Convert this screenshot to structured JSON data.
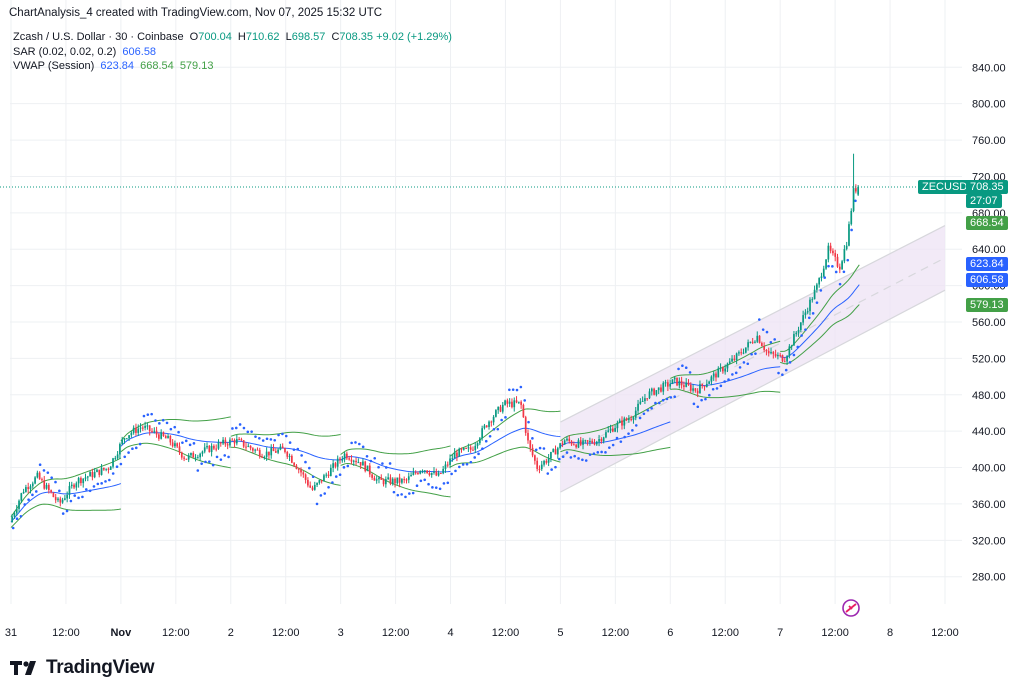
{
  "header": {
    "caption": "ChartAnalysis_4 created with TradingView.com, Nov 07, 2025 15:32 UTC"
  },
  "legend": {
    "symbol_line": "Zcash / U.S. Dollar · 30 · Coinbase",
    "open_key": "O",
    "open": "700.04",
    "high_key": "H",
    "high": "710.62",
    "low_key": "L",
    "low": "698.57",
    "close_key": "C",
    "close": "708.35",
    "change": "+9.02 (+1.29%)",
    "sar_label": "SAR (0.02, 0.02, 0.2)",
    "sar_value": "606.58",
    "vwap_label": "VWAP (Session)",
    "vwap_values": [
      "623.84",
      "668.54",
      "579.13"
    ]
  },
  "price_tags": {
    "symbol": "ZECUSD",
    "last_price": "708.35",
    "countdown": "27:07",
    "vwap_upper": "668.54",
    "vwap_mid": "623.84",
    "sar": "606.58",
    "vwap_lower": "579.13"
  },
  "footer": {
    "brand": "TradingView"
  },
  "colors": {
    "up": "#089981",
    "down": "#f23645",
    "sar": "#2962ff",
    "vwap": "#2962ff",
    "vwap_band": "#43a047",
    "channel_fill": "#ede3f4",
    "grid": "#eef0f3"
  },
  "chart_data": {
    "type": "candlestick",
    "title": "Zcash / U.S. Dollar · 30 · Coinbase",
    "interval": "30",
    "exchange": "Coinbase",
    "ylim": [
      250,
      870
    ],
    "yticks": [
      280,
      320,
      360,
      400,
      440,
      480,
      520,
      560,
      600,
      640,
      680,
      720,
      760,
      800,
      840
    ],
    "ytick_labels": [
      "280.00",
      "320.00",
      "360.00",
      "400.00",
      "440.00",
      "480.00",
      "520.00",
      "560.00",
      "600.00",
      "640.00",
      "680.00",
      "720.00",
      "760.00",
      "800.00",
      "840.00"
    ],
    "xticks": [
      {
        "label": "31",
        "t": 0
      },
      {
        "label": "12:00",
        "t": 0.5
      },
      {
        "label": "Nov",
        "t": 1
      },
      {
        "label": "12:00",
        "t": 1.5
      },
      {
        "label": "2",
        "t": 2
      },
      {
        "label": "12:00",
        "t": 2.5
      },
      {
        "label": "3",
        "t": 3
      },
      {
        "label": "12:00",
        "t": 3.5
      },
      {
        "label": "4",
        "t": 4
      },
      {
        "label": "12:00",
        "t": 4.5
      },
      {
        "label": "5",
        "t": 5
      },
      {
        "label": "12:00",
        "t": 5.5
      },
      {
        "label": "6",
        "t": 6
      },
      {
        "label": "12:00",
        "t": 6.5
      },
      {
        "label": "7",
        "t": 7
      },
      {
        "label": "12:00",
        "t": 7.5
      },
      {
        "label": "8",
        "t": 8
      },
      {
        "label": "12:00",
        "t": 8.5
      }
    ],
    "price_anchors": [
      [
        0.0,
        340
      ],
      [
        0.12,
        375
      ],
      [
        0.25,
        390
      ],
      [
        0.45,
        360
      ],
      [
        0.6,
        385
      ],
      [
        0.9,
        400
      ],
      [
        1.05,
        435
      ],
      [
        1.2,
        445
      ],
      [
        1.45,
        430
      ],
      [
        1.6,
        410
      ],
      [
        1.9,
        425
      ],
      [
        2.05,
        430
      ],
      [
        2.3,
        415
      ],
      [
        2.5,
        420
      ],
      [
        2.65,
        395
      ],
      [
        2.75,
        375
      ],
      [
        2.9,
        395
      ],
      [
        3.05,
        415
      ],
      [
        3.2,
        405
      ],
      [
        3.35,
        385
      ],
      [
        3.6,
        385
      ],
      [
        3.75,
        400
      ],
      [
        3.9,
        390
      ],
      [
        4.05,
        415
      ],
      [
        4.2,
        420
      ],
      [
        4.35,
        450
      ],
      [
        4.5,
        470
      ],
      [
        4.65,
        470
      ],
      [
        4.72,
        425
      ],
      [
        4.8,
        400
      ],
      [
        4.9,
        410
      ],
      [
        5.05,
        430
      ],
      [
        5.2,
        425
      ],
      [
        5.35,
        430
      ],
      [
        5.5,
        445
      ],
      [
        5.65,
        455
      ],
      [
        5.8,
        480
      ],
      [
        6.05,
        495
      ],
      [
        6.25,
        485
      ],
      [
        6.4,
        500
      ],
      [
        6.6,
        520
      ],
      [
        6.8,
        545
      ],
      [
        6.9,
        525
      ],
      [
        7.05,
        520
      ],
      [
        7.2,
        560
      ],
      [
        7.35,
        600
      ],
      [
        7.45,
        640
      ],
      [
        7.55,
        620
      ],
      [
        7.62,
        650
      ],
      [
        7.68,
        705
      ],
      [
        7.72,
        708.35
      ]
    ],
    "last_candle": {
      "open": 700.04,
      "high": 710.62,
      "low": 698.57,
      "close": 708.35
    },
    "spike_high": 745,
    "sar_value": 606.58,
    "vwap": {
      "mid": 623.84,
      "upper": 668.54,
      "lower": 579.13
    },
    "channel": {
      "t_start": 5.0,
      "t_end": 8.5,
      "upper_start": 450,
      "upper_end": 666,
      "lower_start": 373,
      "lower_end": 595
    }
  }
}
